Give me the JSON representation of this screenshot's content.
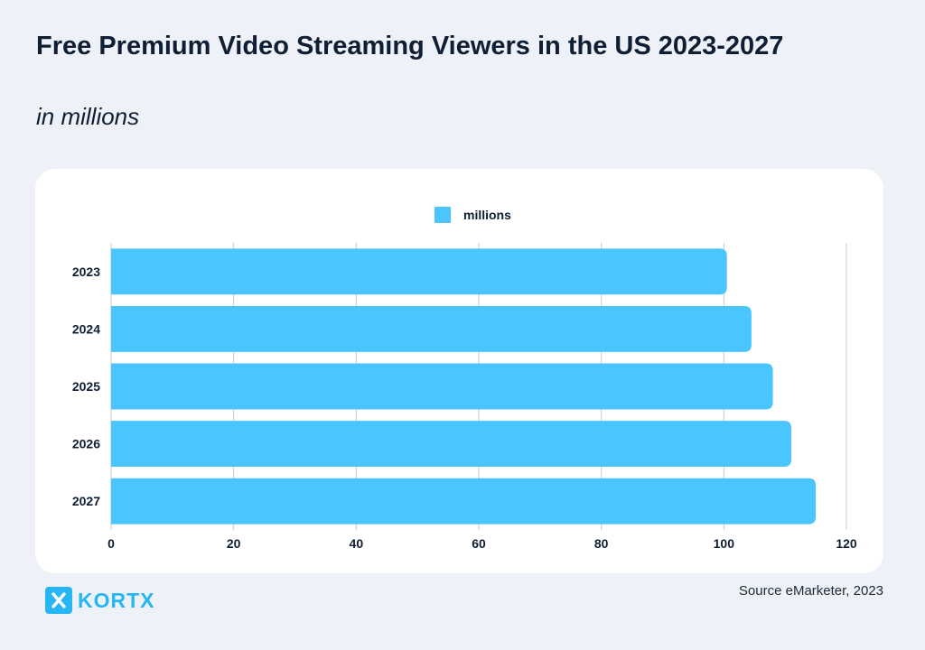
{
  "header": {
    "title": "Free Premium Video Streaming Viewers in the US 2023-2027",
    "subtitle": "in millions"
  },
  "footer": {
    "source": "Source eMarketer, 2023",
    "brand": "KORTX"
  },
  "colors": {
    "bar": "#4bc5fd",
    "grid": "#c9c9c9",
    "text": "#0f1e33"
  },
  "chart_data": {
    "type": "bar",
    "orientation": "horizontal",
    "categories": [
      "2023",
      "2024",
      "2025",
      "2026",
      "2027"
    ],
    "series": [
      {
        "name": "millions",
        "values": [
          100.5,
          104.5,
          108,
          111,
          115
        ]
      }
    ],
    "xlim": [
      0,
      120
    ],
    "xticks": [
      0,
      20,
      40,
      60,
      80,
      100,
      120
    ],
    "legend": "top-center",
    "grid": true
  }
}
